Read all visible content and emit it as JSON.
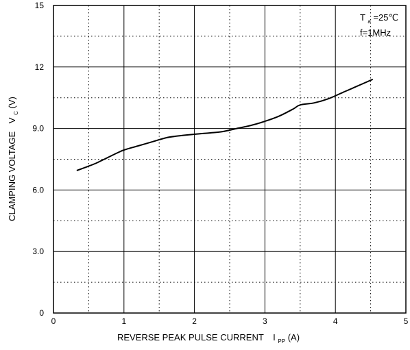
{
  "chart_data": {
    "type": "line",
    "title": "",
    "xlabel": "REVERSE PEAK PULSE CURRENT",
    "xlabel_symbol": "I",
    "xlabel_subscript": "PP",
    "xlabel_unit": "(A)",
    "ylabel": "CLAMPING VOLTAGE",
    "ylabel_symbol": "V",
    "ylabel_subscript": "C",
    "ylabel_unit": "(V)",
    "xlim": [
      0,
      5
    ],
    "ylim": [
      0,
      15
    ],
    "x_ticks": [
      0,
      1,
      2,
      3,
      4,
      5
    ],
    "x_tick_labels": [
      "0",
      "1",
      "2",
      "3",
      "4",
      "5"
    ],
    "y_ticks": [
      0,
      3,
      6,
      9,
      12,
      15
    ],
    "y_tick_labels": [
      "0",
      "3.0",
      "6.0",
      "9.0",
      "12",
      "15"
    ],
    "grid": true,
    "grid_style": "solid major lines with dotted minor lines at half intervals",
    "annotations": {
      "temp_symbol": "T",
      "temp_subscript": "a",
      "temp_value": "=25℃",
      "frequency": "f=1MHz"
    },
    "series": [
      {
        "color": "#000000",
        "x": [
          0.33,
          0.45,
          0.6,
          0.75,
          0.9,
          1.0,
          1.2,
          1.4,
          1.6,
          1.8,
          2.0,
          2.2,
          2.4,
          2.6,
          2.8,
          3.0,
          3.2,
          3.4,
          3.5,
          3.7,
          3.9,
          4.1,
          4.3,
          4.53
        ],
        "y": [
          6.95,
          7.1,
          7.3,
          7.55,
          7.8,
          7.95,
          8.15,
          8.35,
          8.55,
          8.65,
          8.72,
          8.78,
          8.85,
          9.0,
          9.15,
          9.35,
          9.6,
          9.95,
          10.15,
          10.25,
          10.45,
          10.75,
          11.05,
          11.4
        ]
      }
    ]
  }
}
